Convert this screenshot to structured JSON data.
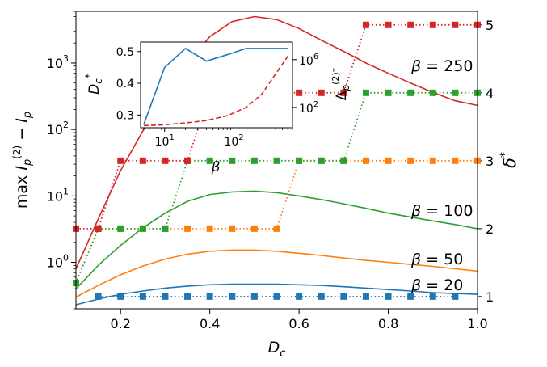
{
  "chart_data": {
    "type": "line",
    "main": {
      "xlabel": "D_c",
      "ylabel_left": "max I_p^(2) − I_p",
      "ylabel_right": "δ*",
      "xlim": [
        0.1,
        1.0
      ],
      "ylim_left": [
        0.2,
        6000
      ],
      "yscale_left": "log",
      "ylim_right": [
        0.82,
        5.2
      ],
      "x_ticks": [
        "0.2",
        "0.4",
        "0.6",
        "0.8",
        "1.0"
      ],
      "y_left_ticks": [
        {
          "value": 1,
          "exp": "0"
        },
        {
          "value": 10,
          "exp": "1"
        },
        {
          "value": 100,
          "exp": "2"
        },
        {
          "value": 1000,
          "exp": "3"
        }
      ],
      "y_right_ticks": [
        "1",
        "2",
        "3",
        "4",
        "5"
      ],
      "series": [
        {
          "name": "β = 20",
          "label": "β = 20",
          "color": "#1f77b4",
          "x": [
            0.1,
            0.15,
            0.2,
            0.25,
            0.3,
            0.35,
            0.4,
            0.45,
            0.5,
            0.55,
            0.6,
            0.65,
            0.7,
            0.75,
            0.8,
            0.85,
            0.9,
            0.95,
            1.0
          ],
          "y": [
            0.23,
            0.28,
            0.33,
            0.37,
            0.41,
            0.44,
            0.46,
            0.47,
            0.47,
            0.47,
            0.46,
            0.45,
            0.43,
            0.41,
            0.39,
            0.37,
            0.35,
            0.34,
            0.33
          ],
          "delta_x": [
            0.15,
            0.2,
            0.25,
            0.3,
            0.35,
            0.4,
            0.45,
            0.5,
            0.55,
            0.6,
            0.65,
            0.7,
            0.75,
            0.8,
            0.85,
            0.9,
            0.95
          ],
          "delta": [
            1,
            1,
            1,
            1,
            1,
            1,
            1,
            1,
            1,
            1,
            1,
            1,
            1,
            1,
            1,
            1,
            1
          ]
        },
        {
          "name": "β = 50",
          "label": "β = 50",
          "color": "#ff7f0e",
          "x": [
            0.1,
            0.15,
            0.2,
            0.25,
            0.3,
            0.35,
            0.4,
            0.45,
            0.5,
            0.55,
            0.6,
            0.65,
            0.7,
            0.75,
            0.8,
            0.85,
            0.9,
            0.95,
            1.0
          ],
          "y": [
            0.3,
            0.45,
            0.65,
            0.88,
            1.12,
            1.33,
            1.47,
            1.53,
            1.53,
            1.47,
            1.37,
            1.27,
            1.16,
            1.07,
            1.0,
            0.93,
            0.87,
            0.8,
            0.74
          ],
          "delta_x": [
            0.1,
            0.15,
            0.2,
            0.25,
            0.3,
            0.35,
            0.4,
            0.45,
            0.5,
            0.55,
            0.6,
            0.65,
            0.7,
            0.75,
            0.8,
            0.85,
            0.9,
            0.95,
            1.0
          ],
          "delta": [
            1.2,
            2,
            2,
            2,
            2,
            2,
            2,
            2,
            2,
            2,
            3,
            3,
            3,
            3,
            3,
            3,
            3,
            3,
            3
          ]
        },
        {
          "name": "β = 100",
          "label": "β = 100",
          "color": "#2ca02c",
          "x": [
            0.1,
            0.15,
            0.2,
            0.25,
            0.3,
            0.35,
            0.4,
            0.45,
            0.5,
            0.55,
            0.6,
            0.65,
            0.7,
            0.75,
            0.8,
            0.85,
            0.9,
            0.95,
            1.0
          ],
          "y": [
            0.4,
            0.9,
            1.8,
            3.3,
            5.5,
            8.3,
            10.5,
            11.5,
            11.8,
            11.2,
            10.0,
            8.8,
            7.6,
            6.5,
            5.5,
            4.8,
            4.2,
            3.7,
            3.2
          ],
          "delta_x": [
            0.1,
            0.15,
            0.2,
            0.25,
            0.3,
            0.35,
            0.4,
            0.45,
            0.5,
            0.55,
            0.6,
            0.65,
            0.7,
            0.75,
            0.8,
            0.85,
            0.9,
            0.95,
            1.0
          ],
          "delta": [
            1.2,
            2,
            2,
            2,
            2,
            3,
            3,
            3,
            3,
            3,
            3,
            3,
            3,
            4,
            4,
            4,
            4,
            4,
            4
          ]
        },
        {
          "name": "β = 250",
          "label": "β = 250",
          "color": "#d62728",
          "x": [
            0.1,
            0.15,
            0.2,
            0.25,
            0.3,
            0.35,
            0.4,
            0.45,
            0.5,
            0.55,
            0.6,
            0.65,
            0.7,
            0.75,
            0.8,
            0.85,
            0.9,
            0.95,
            1.0
          ],
          "y": [
            0.8,
            4.5,
            24,
            95,
            330,
            1000,
            2500,
            4200,
            5000,
            4500,
            3300,
            2200,
            1500,
            1000,
            700,
            500,
            360,
            270,
            230
          ],
          "delta_x": [
            0.1,
            0.15,
            0.2,
            0.25,
            0.3,
            0.35,
            0.4,
            0.45,
            0.5,
            0.55,
            0.6,
            0.65,
            0.7,
            0.75,
            0.8,
            0.85,
            0.9,
            0.95,
            1.0
          ],
          "delta": [
            2,
            2,
            3,
            3,
            3,
            3,
            4,
            4,
            4,
            4,
            4,
            4,
            4,
            5,
            5,
            5,
            5,
            5,
            5
          ]
        }
      ]
    },
    "inset": {
      "xlabel": "β",
      "ylabel_left": "D_c*",
      "ylabel_right": "Δ_p^(2)*",
      "xscale": "log",
      "xlim": [
        4.5,
        700
      ],
      "ylim_left": [
        0.26,
        0.53
      ],
      "ylim_right": [
        2,
        30000000
      ],
      "yscale_right": "log",
      "x_ticks": [
        {
          "value": 10,
          "exp": "1"
        },
        {
          "value": 100,
          "exp": "2"
        }
      ],
      "y_left_ticks": [
        "0.3",
        "0.4",
        "0.5"
      ],
      "y_right_ticks": [
        {
          "value": 100,
          "exp": "2"
        },
        {
          "value": 1000000,
          "exp": "6"
        }
      ],
      "series": [
        {
          "name": "D_c*",
          "axis": "left",
          "style": "solid",
          "color": "#1f77b4",
          "x": [
            5,
            10,
            20,
            40,
            80,
            150,
            250,
            600
          ],
          "y": [
            0.27,
            0.45,
            0.51,
            0.47,
            0.49,
            0.51,
            0.51,
            0.51
          ]
        },
        {
          "name": "Δ_p^(2)*",
          "axis": "right",
          "style": "dashed",
          "color": "#d62728",
          "x": [
            5,
            10,
            20,
            40,
            80,
            150,
            250,
            600
          ],
          "y": [
            3,
            3.5,
            5,
            8,
            20,
            100,
            1200,
            2000000
          ]
        }
      ]
    }
  }
}
